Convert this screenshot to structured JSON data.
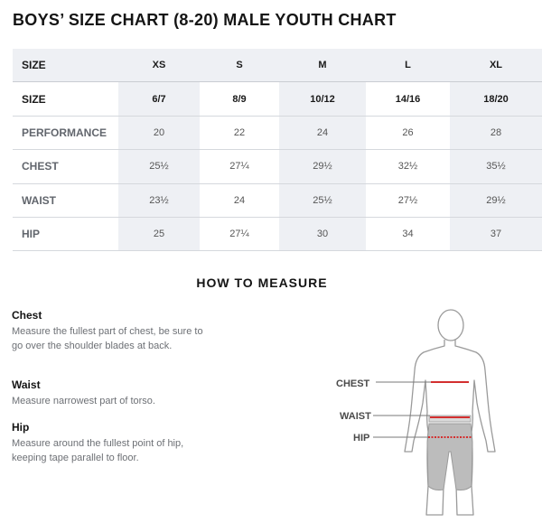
{
  "title": "BOYS’ SIZE CHART (8-20) MALE YOUTH CHART",
  "table": {
    "header": {
      "label": "SIZE",
      "cols": [
        "XS",
        "S",
        "M",
        "L",
        "XL"
      ]
    },
    "rows": [
      {
        "label": "SIZE",
        "values": [
          "6/7",
          "8/9",
          "10/12",
          "14/16",
          "18/20"
        ]
      },
      {
        "label": "PERFORMANCE",
        "values": [
          "20",
          "22",
          "24",
          "26",
          "28"
        ]
      },
      {
        "label": "CHEST",
        "values": [
          "25½",
          "27¼",
          "29½",
          "32½",
          "35½"
        ]
      },
      {
        "label": "WAIST",
        "values": [
          "23½",
          "24",
          "25½",
          "27½",
          "29½"
        ]
      },
      {
        "label": "HIP",
        "values": [
          "25",
          "27¼",
          "30",
          "34",
          "37"
        ]
      }
    ]
  },
  "how_to_measure": {
    "title": "HOW TO MEASURE",
    "items": [
      {
        "heading": "Chest",
        "text": "Measure the fullest part of chest, be sure to go over the shoulder blades at back."
      },
      {
        "heading": "Waist",
        "text": "Measure narrowest part of torso."
      },
      {
        "heading": "Hip",
        "text": "Measure around the fullest point of hip, keeping tape parallel to floor."
      }
    ]
  },
  "figure": {
    "labels": {
      "chest": "CHEST",
      "waist": "WAIST",
      "hip": "HIP"
    },
    "tape_color": "#d32f2f",
    "shorts_color": "#bcbcbc",
    "outline_color": "#9a9a9a"
  }
}
